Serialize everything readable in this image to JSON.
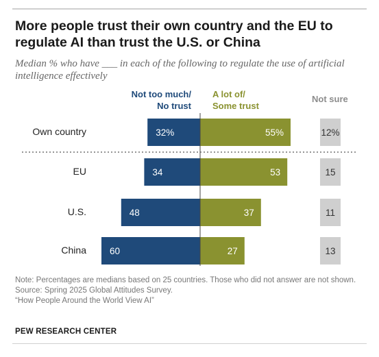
{
  "chart_data": {
    "type": "bar",
    "title": "More people trust their own country and the EU to regulate AI than trust the U.S. or China",
    "subtitle": "Median % who have ___ in each of the following to regulate the use of artificial intelligence effectively",
    "columns": {
      "negative": "Not too much/\nNo trust",
      "positive": "A lot of/\nSome trust",
      "not_sure": "Not sure"
    },
    "categories": [
      "Own country",
      "EU",
      "U.S.",
      "China"
    ],
    "series": [
      {
        "name": "Not too much/No trust",
        "values": [
          32,
          34,
          48,
          60
        ],
        "labels": [
          "32%",
          "34",
          "48",
          "60"
        ],
        "color": "#1f4a7a"
      },
      {
        "name": "A lot of/Some trust",
        "values": [
          55,
          53,
          37,
          27
        ],
        "labels": [
          "55%",
          "53",
          "37",
          "27"
        ],
        "color": "#8a9230"
      },
      {
        "name": "Not sure",
        "values": [
          12,
          15,
          11,
          13
        ],
        "labels": [
          "12%",
          "15",
          "11",
          "13"
        ],
        "color": "#cfcfcf"
      }
    ]
  },
  "footer": {
    "note": "Note: Percentages are medians based on 25 countries. Those who did not answer are not shown.",
    "source": "Source: Spring 2025 Global Attitudes Survey.",
    "report": "“How People Around the World View AI”",
    "org": "PEW RESEARCH CENTER"
  }
}
